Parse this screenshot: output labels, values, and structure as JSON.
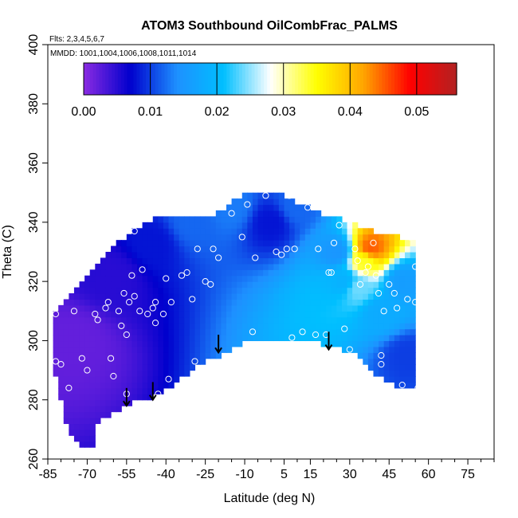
{
  "chart_data": {
    "type": "heatmap",
    "title": "ATOM3 Southbound OilCombFrac_PALMS",
    "subtitle_flights": "Flts: 2,3,4,5,6,7",
    "subtitle_dates": "MMDD: 1001,1004,1006,1008,1011,1014",
    "xlabel": "Latitude (deg N)",
    "ylabel": "Theta (C)",
    "xlim": [
      -85,
      85
    ],
    "ylim": [
      260,
      400
    ],
    "x_tick_labels": [
      "-85",
      "-70",
      "-55",
      "-40",
      "-25",
      "-10",
      "5",
      "15",
      "30",
      "45",
      "60",
      "75"
    ],
    "x_tick_values": [
      -85,
      -70,
      -55,
      -40,
      -25,
      -10,
      5,
      15,
      30,
      45,
      60,
      75
    ],
    "y_tick_labels": [
      "260",
      "280",
      "300",
      "320",
      "340",
      "360",
      "380",
      "400"
    ],
    "y_tick_values": [
      260,
      280,
      300,
      320,
      340,
      360,
      380,
      400
    ],
    "colorbar": {
      "range": [
        0,
        0.056
      ],
      "tick_values": [
        0,
        0.01,
        0.02,
        0.03,
        0.04,
        0.05
      ],
      "tick_labels": [
        "0.00",
        "0.01",
        "0.02",
        "0.03",
        "0.04",
        "0.05"
      ],
      "colors": [
        "#8b2be2",
        "#0000cd",
        "#1e90ff",
        "#00bfff",
        "#ffffff",
        "#ffff00",
        "#ffa500",
        "#ff0000",
        "#b22222"
      ]
    },
    "domain_boundary_upper": [
      [
        -83,
        308
      ],
      [
        -79,
        312
      ],
      [
        -74,
        317
      ],
      [
        -70,
        322
      ],
      [
        -65,
        327
      ],
      [
        -60,
        331
      ],
      [
        -57,
        334
      ],
      [
        -53,
        337
      ],
      [
        -48,
        340
      ],
      [
        -42,
        342
      ],
      [
        -33,
        342.5
      ],
      [
        -26,
        343
      ],
      [
        -20,
        343
      ],
      [
        -15,
        347
      ],
      [
        -10,
        349
      ],
      [
        -5,
        349.5
      ],
      [
        5,
        349.5
      ],
      [
        10,
        347
      ],
      [
        15,
        345
      ],
      [
        20,
        343
      ],
      [
        25,
        342
      ],
      [
        30,
        340
      ],
      [
        35,
        338
      ],
      [
        40,
        337
      ],
      [
        45,
        336
      ],
      [
        50,
        335
      ],
      [
        52,
        334
      ],
      [
        55,
        333
      ]
    ],
    "domain_boundary_lower": [
      [
        -83,
        293
      ],
      [
        -80,
        280
      ],
      [
        -78,
        272
      ],
      [
        -76,
        268
      ],
      [
        -72,
        265
      ],
      [
        -68,
        264
      ],
      [
        -66,
        272
      ],
      [
        -62,
        274
      ],
      [
        -57,
        277
      ],
      [
        -52,
        279
      ],
      [
        -47,
        280
      ],
      [
        -42,
        282
      ],
      [
        -37,
        285
      ],
      [
        -30,
        290
      ],
      [
        -22,
        294
      ],
      [
        -15,
        297
      ],
      [
        -8,
        300
      ],
      [
        0,
        301
      ],
      [
        10,
        300
      ],
      [
        20,
        299
      ],
      [
        28,
        297
      ],
      [
        35,
        294
      ],
      [
        40,
        289
      ],
      [
        45,
        286
      ],
      [
        50,
        284
      ],
      [
        55,
        284
      ],
      [
        55,
        333
      ]
    ],
    "anomaly_features": [
      {
        "lon": -75,
        "theta": 300,
        "value": 0.002
      },
      {
        "lon": -60,
        "theta": 322,
        "value": 0.005
      },
      {
        "lon": -45,
        "theta": 333,
        "value": 0.008
      },
      {
        "lon": -30,
        "theta": 340,
        "value": 0.012
      },
      {
        "lon": -15,
        "theta": 345,
        "value": 0.013
      },
      {
        "lon": 0,
        "theta": 340,
        "value": 0.008
      },
      {
        "lon": 10,
        "theta": 345,
        "value": 0.012
      },
      {
        "lon": 25,
        "theta": 330,
        "value": 0.015
      },
      {
        "lon": 28,
        "theta": 320,
        "value": 0.019
      },
      {
        "lon": 33,
        "theta": 318,
        "value": 0.024
      },
      {
        "lon": 36,
        "theta": 327,
        "value": 0.034
      },
      {
        "lon": 38,
        "theta": 331,
        "value": 0.045
      },
      {
        "lon": 42,
        "theta": 310,
        "value": 0.018
      },
      {
        "lon": 50,
        "theta": 320,
        "value": 0.016
      },
      {
        "lon": 52,
        "theta": 295,
        "value": 0.01
      }
    ],
    "sample_points": [
      [
        -82,
        309
      ],
      [
        -82,
        293
      ],
      [
        -80,
        292
      ],
      [
        -77,
        284
      ],
      [
        -75,
        310
      ],
      [
        -72,
        294
      ],
      [
        -70,
        290
      ],
      [
        -67,
        309
      ],
      [
        -66,
        307
      ],
      [
        -63,
        311
      ],
      [
        -62,
        313
      ],
      [
        -61,
        294
      ],
      [
        -60,
        288
      ],
      [
        -58,
        310
      ],
      [
        -57,
        305
      ],
      [
        -56,
        316
      ],
      [
        -55,
        282
      ],
      [
        -55,
        302
      ],
      [
        -54,
        313
      ],
      [
        -53,
        322
      ],
      [
        -52,
        315
      ],
      [
        -52,
        337
      ],
      [
        -50,
        310
      ],
      [
        -49,
        324
      ],
      [
        -48,
        278
      ],
      [
        -47,
        309
      ],
      [
        -45,
        311
      ],
      [
        -44,
        313
      ],
      [
        -44,
        306
      ],
      [
        -43,
        282
      ],
      [
        -41,
        309
      ],
      [
        -40,
        321
      ],
      [
        -39,
        287
      ],
      [
        -38,
        313
      ],
      [
        -34,
        322
      ],
      [
        -32,
        323
      ],
      [
        -30,
        314
      ],
      [
        -29,
        293
      ],
      [
        -28,
        331
      ],
      [
        -25,
        320
      ],
      [
        -23,
        319
      ],
      [
        -22,
        331
      ],
      [
        -20,
        328
      ],
      [
        -15,
        343
      ],
      [
        -11,
        335
      ],
      [
        -9,
        346
      ],
      [
        -7,
        303
      ],
      [
        -6,
        328
      ],
      [
        -2,
        349
      ],
      [
        2,
        330
      ],
      [
        4,
        329
      ],
      [
        6,
        331
      ],
      [
        7,
        349
      ],
      [
        8,
        301
      ],
      [
        9,
        331
      ],
      [
        12,
        303
      ],
      [
        14,
        345
      ],
      [
        17,
        302
      ],
      [
        18,
        331
      ],
      [
        21,
        302
      ],
      [
        22,
        323
      ],
      [
        23,
        323
      ],
      [
        24,
        333
      ],
      [
        26,
        339
      ],
      [
        28,
        304
      ],
      [
        30,
        297
      ],
      [
        32,
        331
      ],
      [
        33,
        327
      ],
      [
        34,
        319
      ],
      [
        36,
        323
      ],
      [
        37,
        325
      ],
      [
        39,
        333
      ],
      [
        40,
        322
      ],
      [
        41,
        316
      ],
      [
        42,
        295
      ],
      [
        42,
        292
      ],
      [
        43,
        310
      ],
      [
        45,
        319
      ],
      [
        47,
        316
      ],
      [
        48,
        311
      ],
      [
        50,
        285
      ],
      [
        52,
        314
      ],
      [
        53,
        335
      ],
      [
        55,
        325
      ],
      [
        55,
        313
      ],
      [
        56,
        284
      ]
    ],
    "arrows": [
      [
        -55,
        284
      ],
      [
        -45,
        286
      ],
      [
        -20,
        302
      ],
      [
        22,
        303
      ]
    ],
    "legend": false
  }
}
